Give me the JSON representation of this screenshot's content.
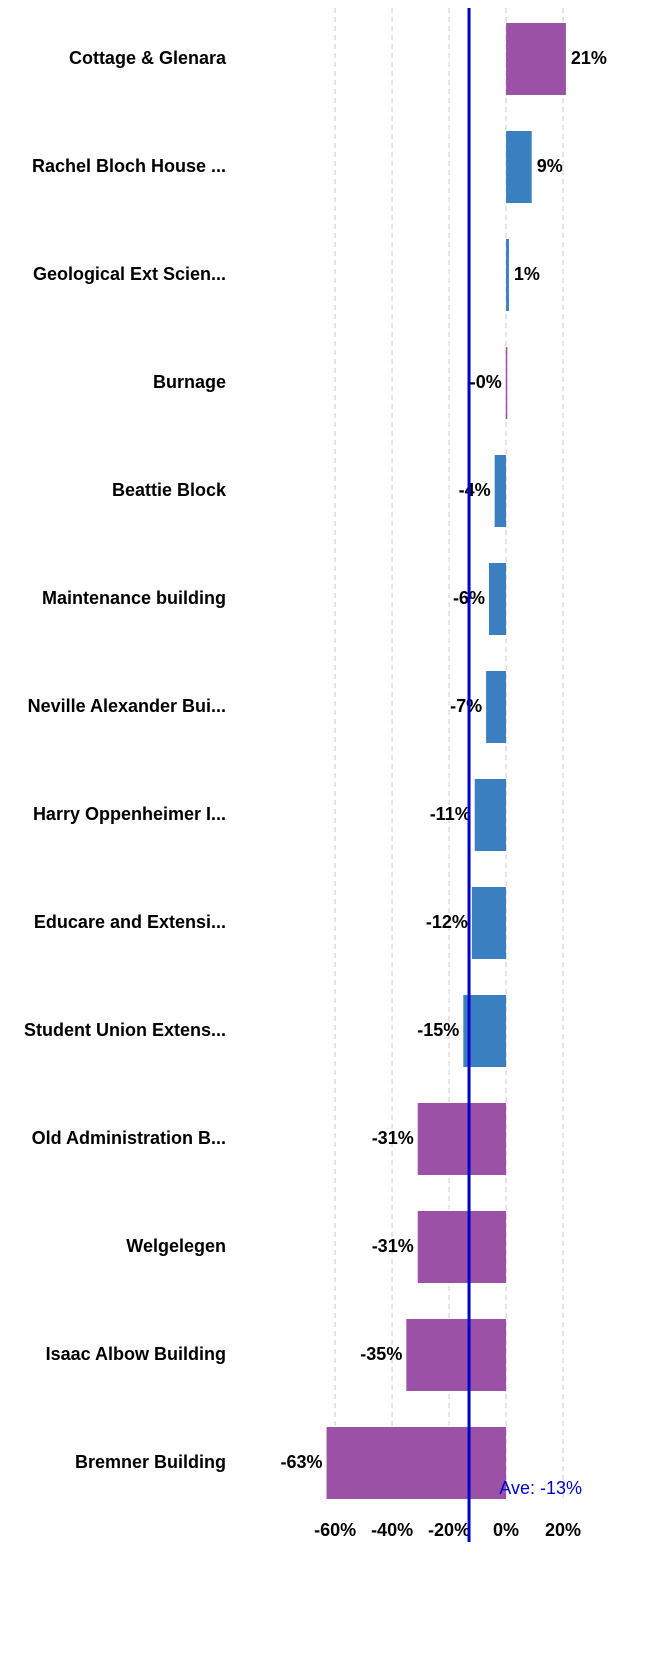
{
  "chart_data": {
    "type": "barh",
    "categories": [
      "Cottage & Glenara",
      "Rachel Bloch House ...",
      "Geological Ext Scien...",
      "Burnage",
      "Beattie Block",
      "Maintenance building",
      "Neville Alexander Bui...",
      "Harry Oppenheimer I...",
      "Educare and Extensi...",
      "Student Union Extens...",
      "Old Administration B...",
      "Welgelegen",
      "Isaac Albow Building",
      "Bremner Building"
    ],
    "values": [
      21,
      9,
      1,
      -0.1,
      -4,
      -6,
      -7,
      -11,
      -12,
      -15,
      -31,
      -31,
      -35,
      -63
    ],
    "value_labels": [
      "21%",
      "9%",
      "1%",
      "-0%",
      "-4%",
      "-6%",
      "-7%",
      "-11%",
      "-12%",
      "-15%",
      "-31%",
      "-31%",
      "-35%",
      "-63%"
    ],
    "colors": [
      "#9b51a6",
      "#3a7fbf",
      "#3a7fbf",
      "#9b51a6",
      "#3a7fbf",
      "#3a7fbf",
      "#3a7fbf",
      "#3a7fbf",
      "#3a7fbf",
      "#3a7fbf",
      "#9b51a6",
      "#9b51a6",
      "#9b51a6",
      "#9b51a6"
    ],
    "xlim": [
      -66,
      27
    ],
    "xticks": [
      {
        "value": -60,
        "label": "-60%"
      },
      {
        "value": -40,
        "label": "-40%"
      },
      {
        "value": -20,
        "label": "-20%"
      },
      {
        "value": 0,
        "label": "0%"
      },
      {
        "value": 20,
        "label": "20%"
      }
    ],
    "grid": true,
    "average": {
      "value": -13,
      "label": "Ave: -13%",
      "color": "#0000cc"
    }
  }
}
